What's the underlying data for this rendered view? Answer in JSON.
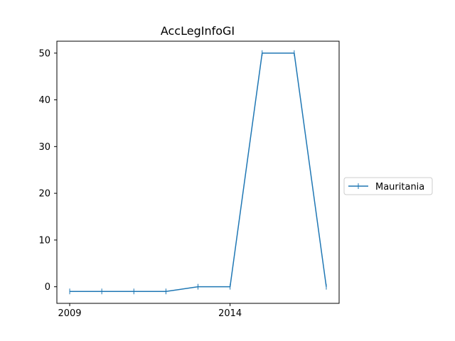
{
  "chart_data": {
    "type": "line",
    "title": "AccLegInfoGI",
    "xlabel": "",
    "ylabel": "",
    "x": [
      2009,
      2010,
      2011,
      2012,
      2013,
      2014,
      2015,
      2016,
      2017
    ],
    "x_ticks": [
      2009,
      2014
    ],
    "x_tick_labels": [
      "2009",
      "2014"
    ],
    "xlim": [
      2008.6,
      2017.4
    ],
    "y_ticks": [
      0,
      10,
      20,
      30,
      40,
      50
    ],
    "y_tick_labels": [
      "0",
      "10",
      "20",
      "30",
      "40",
      "50"
    ],
    "ylim": [
      -3.55,
      52.55
    ],
    "grid": false,
    "legend_position": "right, outside plot area",
    "series": [
      {
        "name": "Mauritania",
        "color": "#1f77b4",
        "marker": "vertical-tick",
        "values": [
          -1,
          -1,
          -1,
          -1,
          0,
          0,
          50,
          50,
          0
        ]
      }
    ]
  }
}
